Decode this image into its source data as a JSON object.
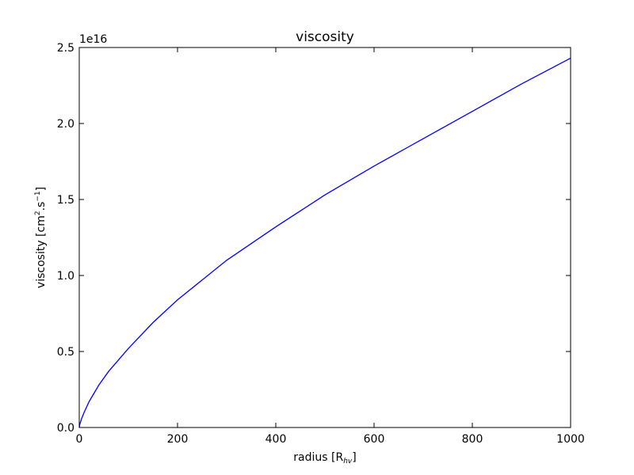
{
  "chart_data": {
    "type": "line",
    "title": "viscosity",
    "xlabel": {
      "text": "radius [R",
      "sub": "hv",
      "close": "]"
    },
    "ylabel": {
      "text": "viscosity [cm",
      "sup1": "2",
      "mid": ".s",
      "sup2": "−1",
      "close": "]"
    },
    "y_offset_label": "1e16",
    "xlim": [
      0,
      1000
    ],
    "ylim": [
      0,
      2.5
    ],
    "xticks": [
      0,
      200,
      400,
      600,
      800,
      1000
    ],
    "yticks": [
      0.0,
      0.5,
      1.0,
      1.5,
      2.0,
      2.5
    ],
    "xtick_labels": [
      "0",
      "200",
      "400",
      "600",
      "800",
      "1000"
    ],
    "ytick_labels": [
      "0.0",
      "0.5",
      "1.0",
      "1.5",
      "2.0",
      "2.5"
    ],
    "grid": false,
    "series": [
      {
        "color": "#0000ff",
        "x": [
          0,
          1,
          5,
          10,
          20,
          40,
          60,
          100,
          150,
          200,
          300,
          400,
          500,
          600,
          700,
          800,
          900,
          1000
        ],
        "y": [
          0,
          0.02,
          0.06,
          0.1,
          0.17,
          0.28,
          0.37,
          0.52,
          0.69,
          0.84,
          1.1,
          1.32,
          1.53,
          1.72,
          1.9,
          2.08,
          2.26,
          2.43
        ]
      }
    ]
  }
}
